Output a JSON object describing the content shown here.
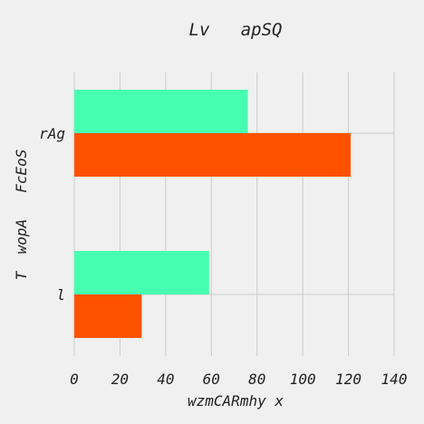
{
  "chart_data": {
    "type": "bar",
    "orientation": "horizontal",
    "title": "Lv   apSQ",
    "xlabel": "wzmCARmhy x",
    "ylabel": "T  wopA   FcEoS",
    "categories": [
      "rAg",
      "l"
    ],
    "series": [
      {
        "name": "series-1",
        "color": "#47ffb0",
        "values": [
          76,
          59
        ]
      },
      {
        "name": "series-2",
        "color": "#ff5200",
        "values": [
          121,
          29.5
        ]
      }
    ],
    "xlim": [
      0,
      140
    ],
    "xticks": [
      0,
      20,
      40,
      60,
      80,
      100,
      120,
      140
    ],
    "grid": true
  }
}
